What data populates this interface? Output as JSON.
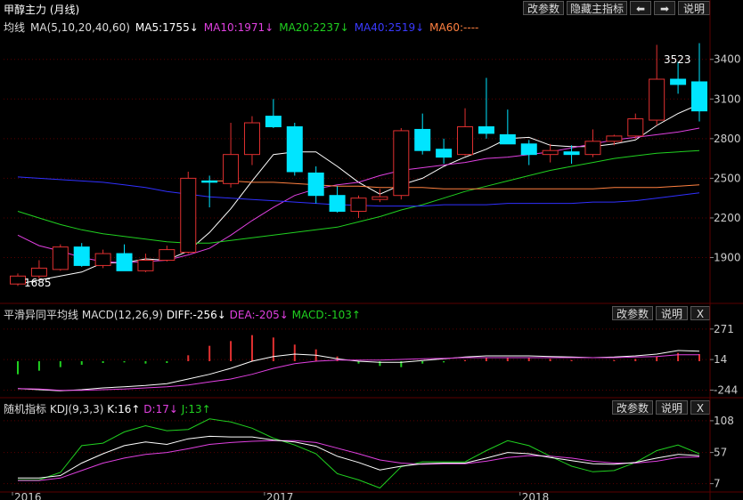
{
  "window": {
    "title": "甲醇主力 (月线)",
    "buttons": {
      "params": "改参数",
      "hide_indicators": "隐藏主指标",
      "prev": "⬅",
      "next": "➡",
      "help": "说明"
    }
  },
  "main": {
    "legend": {
      "label": "均线",
      "ma_def": "MA(5,10,20,40,60)",
      "ma5": "MA5:1755↓",
      "ma10": "MA10:1971↓",
      "ma20": "MA20:2237↓",
      "ma40": "MA40:2519↓",
      "ma60": "MA60:----"
    },
    "annotations": {
      "high": "3523",
      "low": "1685"
    }
  },
  "macd_panel": {
    "title": "平滑异同平均线",
    "def": "MACD(12,26,9)",
    "diff": "DIFF:-256↓",
    "dea": "DEA:-205↓",
    "macd": "MACD:-103↑",
    "buttons": {
      "params": "改参数",
      "help": "说明",
      "close": "X"
    }
  },
  "kdj_panel": {
    "title": "随机指标",
    "def": "KDJ(9,3,3)",
    "k": "K:16↑",
    "d": "D:17↓",
    "j": "J:13↑",
    "buttons": {
      "params": "改参数",
      "help": "说明",
      "close": "X"
    }
  },
  "x_axis": {
    "labels": [
      "2016",
      "2017",
      "2018"
    ]
  },
  "colors": {
    "up": "#e03030",
    "down": "#00e5ff",
    "ma5": "#ffffff",
    "ma10": "#e040e0",
    "ma20": "#20d020",
    "ma40": "#3030ff",
    "ma60": "#ff8040",
    "grid": "#5a0000"
  },
  "chart_data": [
    {
      "type": "candlestick",
      "title": "甲醇主力 (月线)",
      "y_ticks": [
        1900,
        2200,
        2500,
        2800,
        3100,
        3400
      ],
      "ylim": [
        1560,
        3580
      ],
      "candles": [
        {
          "o": 1700,
          "h": 1780,
          "l": 1685,
          "c": 1760
        },
        {
          "o": 1760,
          "h": 1880,
          "l": 1740,
          "c": 1820
        },
        {
          "o": 1810,
          "h": 2000,
          "l": 1800,
          "c": 1980
        },
        {
          "o": 1980,
          "h": 2010,
          "l": 1830,
          "c": 1840
        },
        {
          "o": 1840,
          "h": 1960,
          "l": 1820,
          "c": 1930
        },
        {
          "o": 1930,
          "h": 2000,
          "l": 1800,
          "c": 1800
        },
        {
          "o": 1800,
          "h": 1930,
          "l": 1790,
          "c": 1880
        },
        {
          "o": 1880,
          "h": 1990,
          "l": 1870,
          "c": 1960
        },
        {
          "o": 1940,
          "h": 2550,
          "l": 1930,
          "c": 2500
        },
        {
          "o": 2480,
          "h": 2520,
          "l": 2280,
          "c": 2470
        },
        {
          "o": 2460,
          "h": 2920,
          "l": 2430,
          "c": 2680
        },
        {
          "o": 2680,
          "h": 2970,
          "l": 2600,
          "c": 2920
        },
        {
          "o": 2970,
          "h": 3100,
          "l": 2880,
          "c": 2890
        },
        {
          "o": 2890,
          "h": 2920,
          "l": 2520,
          "c": 2550
        },
        {
          "o": 2540,
          "h": 2590,
          "l": 2310,
          "c": 2370
        },
        {
          "o": 2370,
          "h": 2440,
          "l": 2240,
          "c": 2250
        },
        {
          "o": 2250,
          "h": 2370,
          "l": 2200,
          "c": 2350
        },
        {
          "o": 2340,
          "h": 2420,
          "l": 2320,
          "c": 2360
        },
        {
          "o": 2370,
          "h": 2880,
          "l": 2340,
          "c": 2860
        },
        {
          "o": 2870,
          "h": 2990,
          "l": 2680,
          "c": 2710
        },
        {
          "o": 2720,
          "h": 2800,
          "l": 2610,
          "c": 2660
        },
        {
          "o": 2680,
          "h": 3030,
          "l": 2670,
          "c": 2890
        },
        {
          "o": 2890,
          "h": 3260,
          "l": 2800,
          "c": 2840
        },
        {
          "o": 2830,
          "h": 3020,
          "l": 2760,
          "c": 2760
        },
        {
          "o": 2760,
          "h": 2790,
          "l": 2600,
          "c": 2680
        },
        {
          "o": 2680,
          "h": 2760,
          "l": 2620,
          "c": 2710
        },
        {
          "o": 2700,
          "h": 2750,
          "l": 2610,
          "c": 2680
        },
        {
          "o": 2680,
          "h": 2870,
          "l": 2660,
          "c": 2780
        },
        {
          "o": 2780,
          "h": 2830,
          "l": 2750,
          "c": 2820
        },
        {
          "o": 2820,
          "h": 2990,
          "l": 2800,
          "c": 2950
        },
        {
          "o": 2940,
          "h": 3510,
          "l": 2900,
          "c": 3250
        },
        {
          "o": 3250,
          "h": 3380,
          "l": 3140,
          "c": 3210
        },
        {
          "o": 3230,
          "h": 3523,
          "l": 2930,
          "c": 3010
        }
      ],
      "series": [
        {
          "name": "MA5",
          "values": [
            1700,
            1730,
            1760,
            1790,
            1860,
            1860,
            1890,
            1880,
            1950,
            2090,
            2270,
            2480,
            2680,
            2700,
            2700,
            2590,
            2470,
            2380,
            2450,
            2500,
            2590,
            2660,
            2720,
            2800,
            2810,
            2750,
            2740,
            2740,
            2760,
            2790,
            2900,
            2990,
            3060
          ]
        },
        {
          "name": "MA10",
          "values": [
            2070,
            1990,
            1950,
            1900,
            1870,
            1860,
            1870,
            1880,
            1920,
            1970,
            2070,
            2180,
            2280,
            2370,
            2420,
            2450,
            2470,
            2520,
            2560,
            2580,
            2600,
            2620,
            2650,
            2660,
            2680,
            2700,
            2730,
            2760,
            2790,
            2810,
            2830,
            2850,
            2880
          ]
        },
        {
          "name": "MA20",
          "values": [
            2250,
            2200,
            2150,
            2110,
            2080,
            2060,
            2040,
            2020,
            2010,
            2010,
            2030,
            2050,
            2070,
            2090,
            2110,
            2130,
            2170,
            2210,
            2260,
            2300,
            2350,
            2400,
            2440,
            2480,
            2520,
            2560,
            2590,
            2620,
            2650,
            2670,
            2690,
            2700,
            2710
          ]
        },
        {
          "name": "MA40",
          "values": [
            2510,
            2500,
            2490,
            2480,
            2470,
            2450,
            2430,
            2400,
            2380,
            2360,
            2350,
            2340,
            2330,
            2320,
            2310,
            2300,
            2295,
            2290,
            2290,
            2290,
            2300,
            2300,
            2300,
            2310,
            2310,
            2310,
            2310,
            2320,
            2320,
            2330,
            2350,
            2370,
            2390
          ]
        },
        {
          "name": "MA60",
          "values": [
            null,
            null,
            null,
            null,
            null,
            null,
            null,
            null,
            null,
            2480,
            2480,
            2470,
            2470,
            2460,
            2450,
            2440,
            2440,
            2430,
            2430,
            2430,
            2420,
            2420,
            2420,
            2420,
            2420,
            2420,
            2420,
            2420,
            2430,
            2430,
            2430,
            2440,
            2450
          ]
        }
      ]
    },
    {
      "type": "bar+line",
      "title": "MACD(12,26,9)",
      "y_ticks": [
        -244,
        14,
        271
      ],
      "ylim": [
        -300,
        330
      ],
      "series": [
        {
          "name": "DIFF",
          "values": [
            -230,
            -240,
            -250,
            -240,
            -225,
            -215,
            -205,
            -190,
            -150,
            -110,
            -60,
            0,
            40,
            60,
            50,
            20,
            0,
            -10,
            -10,
            5,
            20,
            35,
            45,
            45,
            45,
            40,
            35,
            30,
            35,
            45,
            60,
            90,
            85
          ]
        },
        {
          "name": "DEA",
          "values": [
            -230,
            -235,
            -245,
            -245,
            -240,
            -235,
            -225,
            -215,
            -200,
            -175,
            -150,
            -110,
            -60,
            -20,
            0,
            10,
            10,
            10,
            15,
            20,
            25,
            30,
            30,
            30,
            30,
            30,
            30,
            30,
            30,
            35,
            40,
            55,
            55
          ]
        },
        {
          "name": "MACD",
          "values": [
            -110,
            -80,
            -50,
            -30,
            -15,
            -10,
            -20,
            -15,
            50,
            130,
            170,
            220,
            200,
            140,
            100,
            40,
            -20,
            -40,
            -50,
            -20,
            -10,
            10,
            30,
            30,
            30,
            20,
            10,
            0,
            10,
            20,
            40,
            70,
            60
          ]
        }
      ]
    },
    {
      "type": "line",
      "title": "KDJ(9,3,3)",
      "y_ticks": [
        7,
        57,
        108
      ],
      "ylim": [
        -5,
        115
      ],
      "series": [
        {
          "name": "K",
          "values": [
            16,
            16,
            20,
            40,
            55,
            68,
            74,
            70,
            79,
            83,
            82,
            82,
            77,
            74,
            67,
            51,
            41,
            29,
            35,
            39,
            40,
            40,
            48,
            57,
            55,
            49,
            44,
            39,
            38,
            41,
            48,
            54,
            52
          ]
        },
        {
          "name": "D",
          "values": [
            12,
            12,
            16,
            28,
            40,
            48,
            54,
            57,
            63,
            70,
            73,
            75,
            76,
            76,
            73,
            64,
            55,
            45,
            40,
            38,
            39,
            39,
            43,
            49,
            52,
            51,
            48,
            43,
            40,
            40,
            43,
            49,
            50
          ]
        },
        {
          "name": "J",
          "values": [
            13,
            13,
            25,
            68,
            72,
            90,
            100,
            92,
            94,
            111,
            106,
            96,
            80,
            69,
            55,
            23,
            13,
            0,
            34,
            42,
            42,
            42,
            60,
            76,
            68,
            51,
            35,
            26,
            28,
            41,
            60,
            69,
            55
          ]
        }
      ]
    }
  ]
}
